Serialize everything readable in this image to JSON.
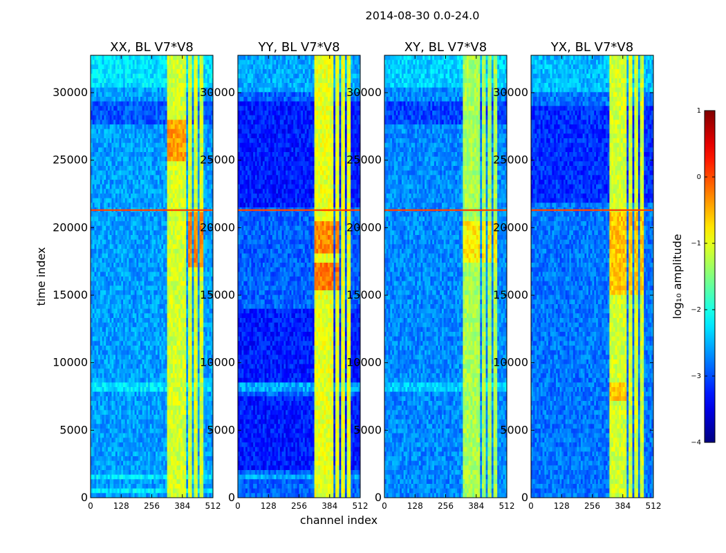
{
  "chart_data": {
    "type": "heatmap",
    "suptitle": "2014-08-30 0.0-24.0",
    "xlabel": "channel index",
    "ylabel": "time index",
    "xlim": [
      0,
      512
    ],
    "ylim": [
      0,
      32768
    ],
    "x_ticks": [
      {
        "value": 0,
        "label": "0"
      },
      {
        "value": 128,
        "label": "128"
      },
      {
        "value": 256,
        "label": "256"
      },
      {
        "value": 384,
        "label": "384"
      },
      {
        "value": 512,
        "label": "512"
      }
    ],
    "y_ticks": [
      {
        "value": 0,
        "label": "0"
      },
      {
        "value": 5000,
        "label": "5000"
      },
      {
        "value": 10000,
        "label": "10000"
      },
      {
        "value": 15000,
        "label": "15000"
      },
      {
        "value": 20000,
        "label": "20000"
      },
      {
        "value": 25000,
        "label": "25000"
      },
      {
        "value": 30000,
        "label": "30000"
      }
    ],
    "colorbar": {
      "label": "log₁₀ amplitude",
      "range": [
        -4,
        1
      ],
      "ticks": [
        {
          "value": 1,
          "label": "1"
        },
        {
          "value": 0,
          "label": "0"
        },
        {
          "value": -1,
          "label": "−1"
        },
        {
          "value": -2,
          "label": "−2"
        },
        {
          "value": -3,
          "label": "−3"
        },
        {
          "value": -4,
          "label": "−4"
        }
      ],
      "colormap": "jet"
    },
    "panels": [
      {
        "title": "XX, BL V7*V8",
        "background": -2.6,
        "bright_channel_bands": [
          [
            322,
            348
          ],
          [
            355,
            372
          ],
          [
            380,
            396
          ],
          [
            405,
            420
          ],
          [
            430,
            446
          ],
          [
            455,
            468
          ]
        ],
        "band_level": -1.1,
        "hot_spots": [
          {
            "t_range": [
              25000,
              28000
            ],
            "ch_range": [
              322,
              396
            ],
            "level": -0.4
          },
          {
            "t_range": [
              17000,
              21000
            ],
            "ch_range": [
              405,
              468
            ],
            "level": -0.3
          }
        ],
        "rfi_time_rows": [
          21300
        ],
        "quiet_time_bands": [
          [
            27500,
            29500
          ]
        ],
        "bright_time_bands": [
          [
            30500,
            32768
          ],
          [
            8000,
            8400
          ],
          [
            1500,
            1700
          ],
          [
            500,
            700
          ]
        ]
      },
      {
        "title": "YY, BL V7*V8",
        "background": -2.9,
        "bright_channel_bands": [
          [
            322,
            348
          ],
          [
            355,
            372
          ],
          [
            380,
            396
          ],
          [
            405,
            420
          ],
          [
            430,
            446
          ],
          [
            455,
            468
          ]
        ],
        "band_level": -1.0,
        "hot_spots": [
          {
            "t_range": [
              18000,
              20500
            ],
            "ch_range": [
              322,
              420
            ],
            "level": -0.3
          },
          {
            "t_range": [
              15500,
              17500
            ],
            "ch_range": [
              322,
              420
            ],
            "level": -0.2
          }
        ],
        "rfi_time_rows": [
          21300
        ],
        "quiet_time_bands": [
          [
            2000,
            7500
          ],
          [
            8500,
            14000
          ],
          [
            21500,
            29500
          ]
        ],
        "bright_time_bands": [
          [
            30000,
            32768
          ],
          [
            8000,
            8400
          ],
          [
            1500,
            1700
          ]
        ]
      },
      {
        "title": "XY, BL V7*V8",
        "background": -2.7,
        "bright_channel_bands": [
          [
            330,
            348
          ],
          [
            355,
            372
          ],
          [
            380,
            396
          ],
          [
            405,
            420
          ],
          [
            430,
            446
          ],
          [
            455,
            468
          ]
        ],
        "band_level": -1.3,
        "hot_spots": [
          {
            "t_range": [
              17500,
              20500
            ],
            "ch_range": [
              330,
              468
            ],
            "level": -0.8
          }
        ],
        "rfi_time_rows": [
          21300
        ],
        "quiet_time_bands": [
          [
            27500,
            29500
          ]
        ],
        "bright_time_bands": [
          [
            30500,
            32768
          ],
          [
            8000,
            8400
          ]
        ]
      },
      {
        "title": "YX, BL V7*V8",
        "background": -2.8,
        "bright_channel_bands": [
          [
            325,
            348
          ],
          [
            355,
            372
          ],
          [
            380,
            396
          ],
          [
            405,
            420
          ],
          [
            430,
            446
          ],
          [
            455,
            468
          ]
        ],
        "band_level": -1.1,
        "hot_spots": [
          {
            "t_range": [
              15000,
              21000
            ],
            "ch_range": [
              325,
              468
            ],
            "level": -0.6
          },
          {
            "t_range": [
              7000,
              8500
            ],
            "ch_range": [
              325,
              396
            ],
            "level": -0.6
          }
        ],
        "rfi_time_rows": [
          21300
        ],
        "quiet_time_bands": [
          [
            22000,
            29000
          ]
        ],
        "bright_time_bands": [
          [
            30000,
            32768
          ]
        ]
      }
    ]
  }
}
